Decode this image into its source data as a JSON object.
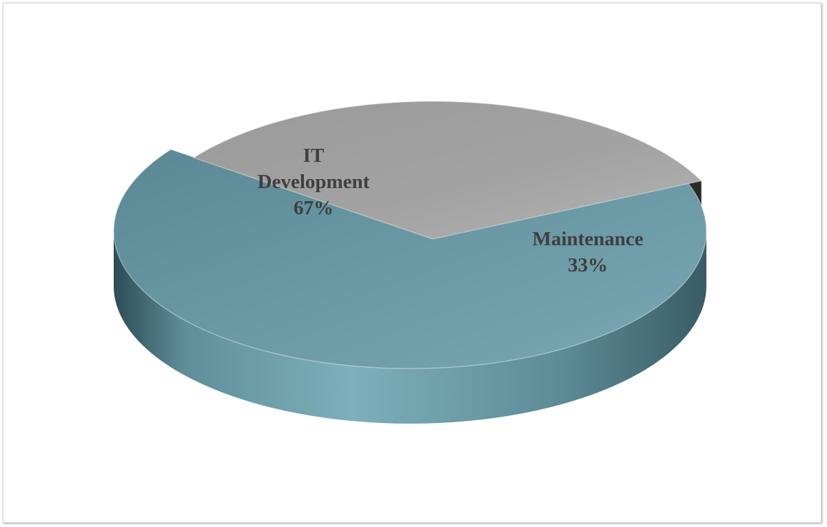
{
  "chart_data": {
    "type": "pie",
    "style": "3d-exploded",
    "slices": [
      {
        "label": "IT Development",
        "label_lines": [
          "IT",
          "Development"
        ],
        "value": 67,
        "value_label": "67%",
        "color": "#6b9aa6"
      },
      {
        "label": "Maintenance",
        "label_lines": [
          "Maintenance"
        ],
        "value": 33,
        "value_label": "33%",
        "color": "#a0a0a0"
      }
    ],
    "legend": "none",
    "data_labels": "inside"
  }
}
